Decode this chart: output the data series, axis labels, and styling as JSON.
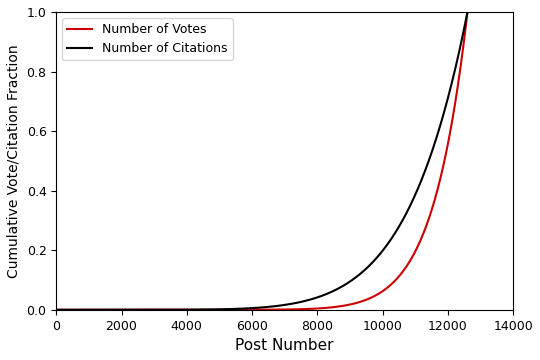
{
  "title": "",
  "xlabel": "Post Number",
  "ylabel": "Cumulative Vote/Citation Fraction",
  "xlim": [
    0,
    14000
  ],
  "ylim": [
    0,
    1.0
  ],
  "xticks": [
    0,
    2000,
    4000,
    6000,
    8000,
    10000,
    12000,
    14000
  ],
  "yticks": [
    0.0,
    0.2,
    0.4,
    0.6,
    0.8,
    1.0
  ],
  "n_posts": 12600,
  "votes_color": "#cc0000",
  "citations_color": "#000000",
  "votes_label": "Number of Votes",
  "citations_label": "Number of Citations",
  "line_width": 1.5,
  "legend_loc": "upper left",
  "background_color": "#ffffff",
  "citations_exponent": 7.0,
  "votes_exponent": 12.0,
  "votes_scale": 12600,
  "citations_scale": 12600
}
